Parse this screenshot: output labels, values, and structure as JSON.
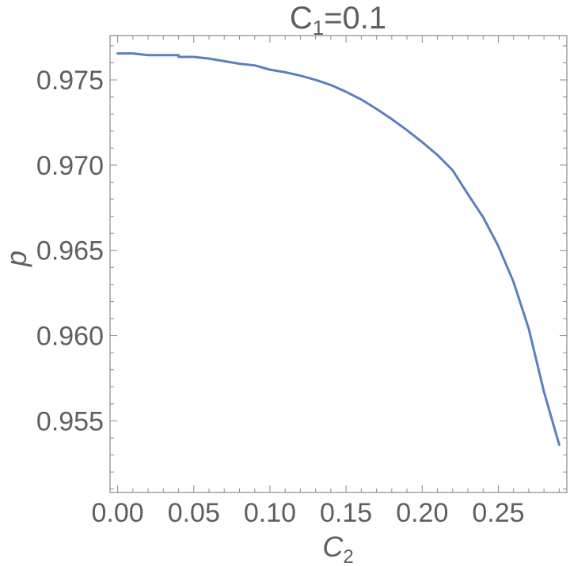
{
  "chart_data": {
    "type": "line",
    "title": {
      "prefix": "C",
      "subscript": "1",
      "suffix": "=0.1"
    },
    "xlabel": {
      "base": "C",
      "subscript": "2"
    },
    "ylabel": "p",
    "xlim": [
      -0.005,
      0.295
    ],
    "ylim": [
      0.9508,
      0.9776
    ],
    "xticks": [
      0.0,
      0.05,
      0.1,
      0.15,
      0.2,
      0.25
    ],
    "xtick_labels": [
      "0.00",
      "0.05",
      "0.10",
      "0.15",
      "0.20",
      "0.25"
    ],
    "yticks": [
      0.955,
      0.96,
      0.965,
      0.97,
      0.975
    ],
    "ytick_labels": [
      "0.955",
      "0.960",
      "0.965",
      "0.970",
      "0.975"
    ],
    "grid": false,
    "colors": {
      "series": "#5b7fbe",
      "text": "#5f5f5f",
      "axes": "#888888"
    },
    "series": [
      {
        "x": [
          0.0,
          0.01,
          0.02,
          0.04,
          0.04,
          0.05,
          0.06,
          0.07,
          0.08,
          0.09,
          0.1,
          0.11,
          0.12,
          0.13,
          0.14,
          0.15,
          0.16,
          0.17,
          0.18,
          0.19,
          0.2,
          0.21,
          0.22,
          0.23,
          0.24,
          0.25,
          0.26,
          0.27,
          0.28,
          0.29
        ],
        "y": [
          0.97655,
          0.97655,
          0.97645,
          0.97645,
          0.97635,
          0.97635,
          0.97625,
          0.9761,
          0.97595,
          0.97585,
          0.9756,
          0.97545,
          0.97525,
          0.975,
          0.9747,
          0.9743,
          0.97385,
          0.9733,
          0.9727,
          0.97205,
          0.97135,
          0.9706,
          0.9697,
          0.9683,
          0.96695,
          0.96525,
          0.96315,
          0.9604,
          0.9567,
          0.9536
        ]
      }
    ]
  }
}
